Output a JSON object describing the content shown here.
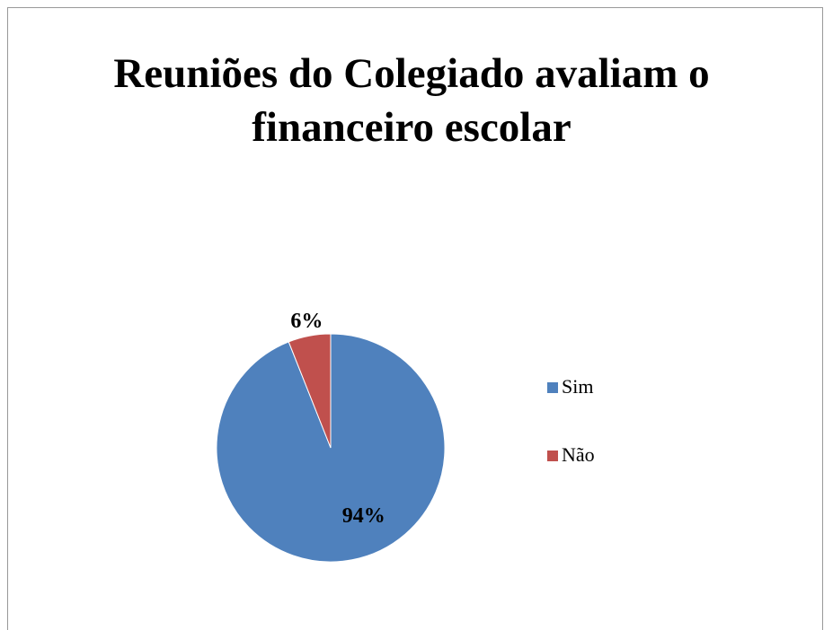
{
  "chart_data": {
    "type": "pie",
    "title": "Reuniões do Colegiado avaliam o financeiro escolar",
    "categories": [
      "Sim",
      "Não"
    ],
    "values": [
      94,
      6
    ],
    "value_labels": [
      "94%",
      "6%"
    ],
    "colors": [
      "#4f81bd",
      "#c0504d"
    ],
    "legend": "right"
  }
}
